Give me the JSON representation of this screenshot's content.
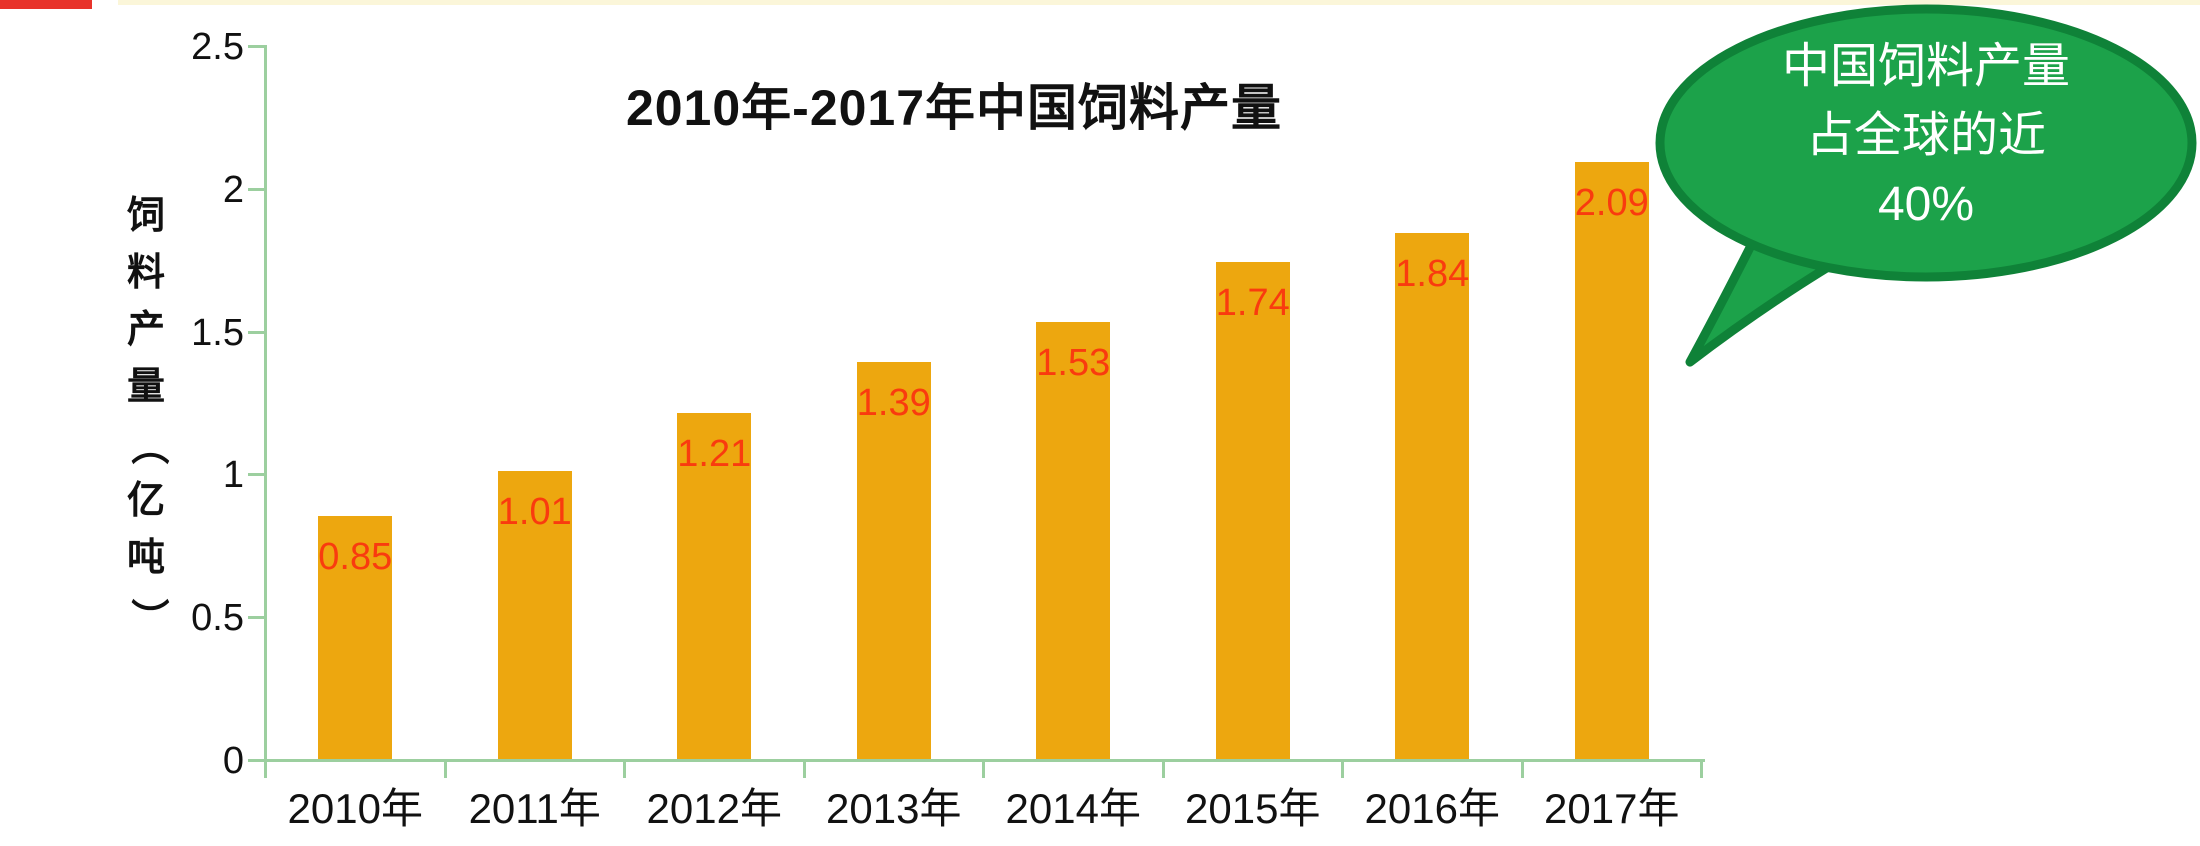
{
  "chart_data": {
    "type": "bar",
    "title": "2010年-2017年中国饲料产量",
    "categories": [
      "2010年",
      "2011年",
      "2012年",
      "2013年",
      "2014年",
      "2015年",
      "2016年",
      "2017年"
    ],
    "values": [
      0.85,
      1.01,
      1.21,
      1.39,
      1.53,
      1.74,
      1.84,
      2.09
    ],
    "data_labels": [
      "0.85",
      "1.01",
      "1.21",
      "1.39",
      "1.53",
      "1.74",
      "1.84",
      "2.09"
    ],
    "ylabel": "饲料产量（亿吨）",
    "xlabel": "",
    "ylim": [
      0,
      2.5
    ],
    "yticks": [
      0,
      0.5,
      1,
      1.5,
      2,
      2.5
    ],
    "ytick_labels": [
      "0",
      "0.5",
      "1",
      "1.5",
      "2",
      "2.5"
    ],
    "grid": "off",
    "legend": "none",
    "bar_color": "#EDA70F",
    "data_label_color": "#F93B0F",
    "axis_color": "#9CCF9F",
    "title_color": "#111111"
  },
  "callout": {
    "lines": [
      "中国饲料产量",
      "占全球的近",
      "40%"
    ],
    "fill_color": "#1CA24A",
    "border_color": "#0F8238",
    "text_color": "#FFFFFF"
  },
  "decorations": {
    "top_left_accent_color": "#E8332B",
    "top_line_color": "#FBF6D9"
  }
}
